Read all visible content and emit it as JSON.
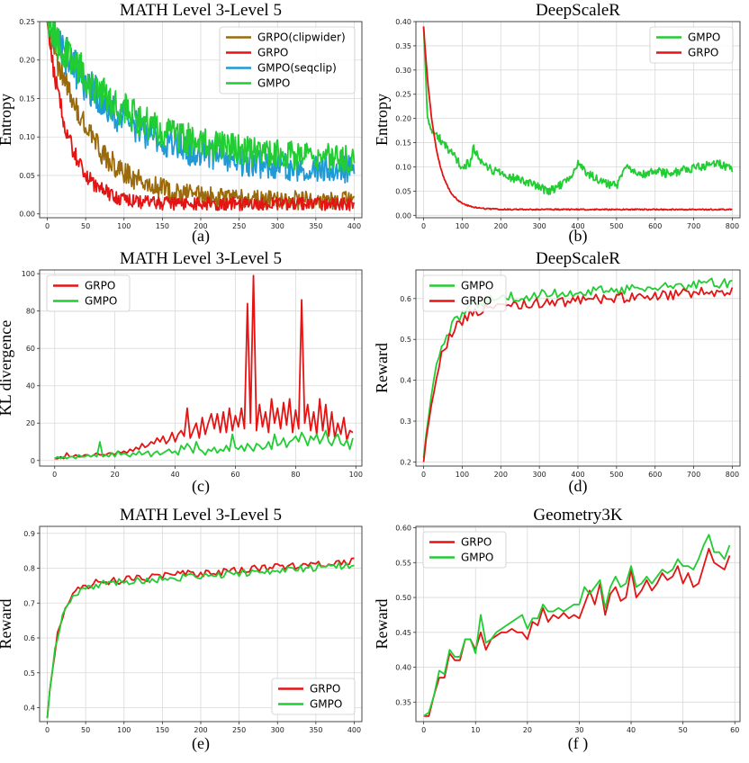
{
  "colors": {
    "grpo_clipwider": "#9b6a0c",
    "grpo": "#e41414",
    "gmpo_seqclip": "#1f9ad6",
    "gmpo": "#22cc33"
  },
  "chart_data": [
    {
      "panel": "a",
      "type": "line",
      "title": "MATH Level 3-Level 5",
      "caption": "(a)",
      "xlabel": "",
      "ylabel": "Entropy",
      "xlim": [
        -10,
        410
      ],
      "ylim": [
        -0.005,
        0.25
      ],
      "xticks": [
        0,
        50,
        100,
        150,
        200,
        250,
        300,
        350,
        400
      ],
      "yticks": [
        0.0,
        0.05,
        0.1,
        0.15,
        0.2,
        0.25
      ],
      "ytick_decimals": 2,
      "grid": true,
      "legend_position": "top-right",
      "series": [
        {
          "name": "GRPO(clipwider)",
          "color_key": "grpo_clipwider",
          "kind": "decay",
          "x0": 0,
          "x1": 400,
          "n": 400,
          "start": 0.25,
          "end": 0.017,
          "tau": 55,
          "noise": 0.02,
          "seed": 11
        },
        {
          "name": "GRPO",
          "color_key": "grpo",
          "kind": "decay",
          "x0": 0,
          "x1": 400,
          "n": 400,
          "start": 0.25,
          "end": 0.013,
          "tau": 28,
          "noise": 0.014,
          "seed": 23
        },
        {
          "name": "GMPO(seqclip)",
          "color_key": "gmpo_seqclip",
          "kind": "decay",
          "x0": 0,
          "x1": 400,
          "n": 400,
          "start": 0.25,
          "end": 0.055,
          "tau": 95,
          "noise": 0.028,
          "seed": 37
        },
        {
          "name": "GMPO",
          "color_key": "gmpo",
          "kind": "decay",
          "x0": 0,
          "x1": 400,
          "n": 400,
          "start": 0.25,
          "end": 0.068,
          "tau": 100,
          "noise": 0.028,
          "seed": 41
        }
      ]
    },
    {
      "panel": "b",
      "type": "line",
      "title": "DeepScaleR",
      "caption": "(b)",
      "xlabel": "",
      "ylabel": "Entropy",
      "xlim": [
        -20,
        820
      ],
      "ylim": [
        -0.005,
        0.4
      ],
      "xticks": [
        0,
        100,
        200,
        300,
        400,
        500,
        600,
        700,
        800
      ],
      "yticks": [
        0.0,
        0.05,
        0.1,
        0.15,
        0.2,
        0.25,
        0.3,
        0.35,
        0.4
      ],
      "ytick_decimals": 2,
      "grid": true,
      "legend_position": "top-right",
      "series": [
        {
          "name": "GMPO",
          "color_key": "gmpo",
          "kind": "points",
          "n": 400,
          "noise": 0.009,
          "seed": 5,
          "x": [
            0,
            10,
            20,
            40,
            60,
            80,
            100,
            120,
            130,
            140,
            160,
            200,
            240,
            280,
            320,
            350,
            380,
            400,
            420,
            460,
            500,
            520,
            560,
            600,
            640,
            680,
            720,
            760,
            800
          ],
          "y": [
            0.39,
            0.2,
            0.175,
            0.16,
            0.14,
            0.12,
            0.1,
            0.11,
            0.14,
            0.12,
            0.1,
            0.085,
            0.075,
            0.065,
            0.05,
            0.06,
            0.08,
            0.11,
            0.09,
            0.07,
            0.06,
            0.1,
            0.085,
            0.09,
            0.085,
            0.095,
            0.1,
            0.11,
            0.095
          ]
        },
        {
          "name": "GRPO",
          "color_key": "grpo",
          "kind": "decay",
          "x0": 0,
          "x1": 800,
          "n": 400,
          "start": 0.39,
          "end": 0.012,
          "tau": 30,
          "noise": 0.002,
          "seed": 7
        }
      ]
    },
    {
      "panel": "c",
      "type": "line",
      "title": "MATH Level 3-Level 5",
      "caption": "(c)",
      "xlabel": "",
      "ylabel": "KL divergence",
      "xlim": [
        -5,
        102
      ],
      "ylim": [
        -3,
        102
      ],
      "xticks": [
        0,
        20,
        40,
        60,
        80,
        100
      ],
      "yticks": [
        0,
        20,
        40,
        60,
        80,
        100
      ],
      "ytick_decimals": 0,
      "grid": true,
      "legend_position": "top-left",
      "series": [
        {
          "name": "GRPO",
          "color_key": "grpo",
          "x": [
            0,
            1,
            2,
            3,
            4,
            5,
            6,
            7,
            8,
            9,
            10,
            11,
            12,
            13,
            14,
            15,
            16,
            17,
            18,
            19,
            20,
            21,
            22,
            23,
            24,
            25,
            26,
            27,
            28,
            29,
            30,
            31,
            32,
            33,
            34,
            35,
            36,
            37,
            38,
            39,
            40,
            41,
            42,
            43,
            44,
            45,
            46,
            47,
            48,
            49,
            50,
            51,
            52,
            53,
            54,
            55,
            56,
            57,
            58,
            59,
            60,
            61,
            62,
            63,
            64,
            65,
            66,
            67,
            68,
            69,
            70,
            71,
            72,
            73,
            74,
            75,
            76,
            77,
            78,
            79,
            80,
            81,
            82,
            83,
            84,
            85,
            86,
            87,
            88,
            89,
            90,
            91,
            92,
            93,
            94,
            95,
            96,
            97,
            98,
            99
          ],
          "y": [
            1,
            1,
            2,
            1,
            4,
            2,
            2,
            3,
            2,
            2,
            3,
            3,
            2,
            3,
            4,
            3,
            3,
            3,
            4,
            4,
            3,
            5,
            4,
            5,
            4,
            6,
            5,
            7,
            6,
            9,
            7,
            8,
            10,
            9,
            12,
            10,
            13,
            9,
            11,
            15,
            10,
            14,
            16,
            13,
            28,
            12,
            16,
            20,
            12,
            23,
            14,
            20,
            25,
            17,
            25,
            15,
            26,
            15,
            28,
            16,
            24,
            18,
            28,
            17,
            84,
            20,
            99,
            16,
            30,
            18,
            26,
            15,
            33,
            20,
            28,
            17,
            31,
            19,
            33,
            15,
            27,
            17,
            86,
            20,
            30,
            16,
            26,
            14,
            33,
            16,
            30,
            13,
            26,
            12,
            20,
            14,
            23,
            11,
            16,
            15
          ]
        },
        {
          "name": "GMPO",
          "color_key": "gmpo",
          "x": [
            0,
            1,
            2,
            3,
            4,
            5,
            6,
            7,
            8,
            9,
            10,
            11,
            12,
            13,
            14,
            15,
            16,
            17,
            18,
            19,
            20,
            21,
            22,
            23,
            24,
            25,
            26,
            27,
            28,
            29,
            30,
            31,
            32,
            33,
            34,
            35,
            36,
            37,
            38,
            39,
            40,
            41,
            42,
            43,
            44,
            45,
            46,
            47,
            48,
            49,
            50,
            51,
            52,
            53,
            54,
            55,
            56,
            57,
            58,
            59,
            60,
            61,
            62,
            63,
            64,
            65,
            66,
            67,
            68,
            69,
            70,
            71,
            72,
            73,
            74,
            75,
            76,
            77,
            78,
            79,
            80,
            81,
            82,
            83,
            84,
            85,
            86,
            87,
            88,
            89,
            90,
            91,
            92,
            93,
            94,
            95,
            96,
            97,
            98,
            99
          ],
          "y": [
            1,
            2,
            1,
            2,
            1,
            2,
            2,
            1,
            3,
            2,
            2,
            3,
            2,
            3,
            2,
            10,
            2,
            3,
            2,
            4,
            2,
            5,
            3,
            4,
            3,
            2,
            4,
            3,
            5,
            3,
            4,
            5,
            2,
            4,
            5,
            3,
            4,
            5,
            6,
            4,
            5,
            3,
            8,
            6,
            9,
            7,
            4,
            10,
            6,
            5,
            3,
            6,
            5,
            7,
            4,
            6,
            5,
            8,
            5,
            14,
            7,
            6,
            8,
            5,
            9,
            7,
            5,
            9,
            8,
            6,
            7,
            10,
            6,
            14,
            8,
            9,
            12,
            7,
            10,
            11,
            13,
            10,
            15,
            12,
            8,
            13,
            11,
            14,
            9,
            12,
            16,
            10,
            8,
            12,
            14,
            9,
            8,
            11,
            6,
            12
          ]
        }
      ]
    },
    {
      "panel": "d",
      "type": "line",
      "title": "DeepScaleR",
      "caption": "(d)",
      "xlabel": "",
      "ylabel": "Reward",
      "xlim": [
        -20,
        820
      ],
      "ylim": [
        0.19,
        0.67
      ],
      "xticks": [
        0,
        100,
        200,
        300,
        400,
        500,
        600,
        700,
        800
      ],
      "yticks": [
        0.2,
        0.3,
        0.4,
        0.5,
        0.6
      ],
      "ytick_decimals": 1,
      "grid": true,
      "legend_position": "top-left",
      "series": [
        {
          "name": "GMPO",
          "color_key": "gmpo",
          "kind": "rise",
          "x0": 0,
          "x1": 800,
          "n": 120,
          "start": 0.21,
          "end": 0.64,
          "tau": 40,
          "drift": 0.05,
          "noise": 0.013,
          "seed": 13
        },
        {
          "name": "GRPO",
          "color_key": "grpo",
          "kind": "rise",
          "x0": 0,
          "x1": 800,
          "n": 120,
          "start": 0.2,
          "end": 0.62,
          "tau": 40,
          "drift": 0.05,
          "noise": 0.013,
          "seed": 17
        }
      ]
    },
    {
      "panel": "e",
      "type": "line",
      "title": "MATH Level 3-Level 5",
      "caption": "(e)",
      "xlabel": "",
      "ylabel": "Reward",
      "xlim": [
        -10,
        410
      ],
      "ylim": [
        0.36,
        0.92
      ],
      "xticks": [
        0,
        50,
        100,
        150,
        200,
        250,
        300,
        350,
        400
      ],
      "yticks": [
        0.4,
        0.5,
        0.6,
        0.7,
        0.8,
        0.9
      ],
      "ytick_decimals": 1,
      "grid": true,
      "legend_position": "bottom-right",
      "series": [
        {
          "name": "GRPO",
          "color_key": "grpo",
          "kind": "rise",
          "x0": 0,
          "x1": 400,
          "n": 120,
          "start": 0.37,
          "end": 0.82,
          "tau": 14,
          "drift": 0.07,
          "noise": 0.012,
          "seed": 29
        },
        {
          "name": "GMPO",
          "color_key": "gmpo",
          "kind": "rise",
          "x0": 0,
          "x1": 400,
          "n": 120,
          "start": 0.37,
          "end": 0.81,
          "tau": 14,
          "drift": 0.065,
          "noise": 0.01,
          "seed": 31
        }
      ]
    },
    {
      "panel": "f",
      "type": "line",
      "title": "Geometry3K",
      "caption": "(f )",
      "xlabel": "",
      "ylabel": "Reward",
      "xlim": [
        -1.5,
        61
      ],
      "ylim": [
        0.322,
        0.602
      ],
      "xticks": [
        0,
        10,
        20,
        30,
        40,
        50,
        60
      ],
      "yticks": [
        0.35,
        0.4,
        0.45,
        0.5,
        0.55,
        0.6
      ],
      "ytick_decimals": 2,
      "grid": true,
      "legend_position": "top-left",
      "series": [
        {
          "name": "GRPO",
          "color_key": "grpo",
          "x": [
            0,
            1,
            2,
            3,
            4,
            5,
            6,
            7,
            8,
            9,
            10,
            11,
            12,
            13,
            14,
            15,
            16,
            17,
            18,
            19,
            20,
            21,
            22,
            23,
            24,
            25,
            26,
            27,
            28,
            29,
            30,
            31,
            32,
            33,
            34,
            35,
            36,
            37,
            38,
            39,
            40,
            41,
            42,
            43,
            44,
            45,
            46,
            47,
            48,
            49,
            50,
            51,
            52,
            53,
            54,
            55,
            56,
            57,
            58,
            59
          ],
          "y": [
            0.33,
            0.33,
            0.36,
            0.385,
            0.385,
            0.42,
            0.41,
            0.41,
            0.44,
            0.44,
            0.425,
            0.45,
            0.425,
            0.44,
            0.445,
            0.45,
            0.45,
            0.455,
            0.45,
            0.45,
            0.44,
            0.465,
            0.46,
            0.485,
            0.465,
            0.475,
            0.47,
            0.478,
            0.47,
            0.475,
            0.47,
            0.49,
            0.51,
            0.49,
            0.52,
            0.475,
            0.505,
            0.515,
            0.495,
            0.5,
            0.54,
            0.5,
            0.51,
            0.525,
            0.51,
            0.52,
            0.535,
            0.525,
            0.53,
            0.545,
            0.52,
            0.535,
            0.515,
            0.52,
            0.545,
            0.57,
            0.55,
            0.545,
            0.54,
            0.56
          ]
        },
        {
          "name": "GMPO",
          "color_key": "gmpo",
          "x": [
            0,
            1,
            2,
            3,
            4,
            5,
            6,
            7,
            8,
            9,
            10,
            11,
            12,
            13,
            14,
            15,
            16,
            17,
            18,
            19,
            20,
            21,
            22,
            23,
            24,
            25,
            26,
            27,
            28,
            29,
            30,
            31,
            32,
            33,
            34,
            35,
            36,
            37,
            38,
            39,
            40,
            41,
            42,
            43,
            44,
            45,
            46,
            47,
            48,
            49,
            50,
            51,
            52,
            53,
            54,
            55,
            56,
            57,
            58,
            59
          ],
          "y": [
            0.33,
            0.335,
            0.36,
            0.395,
            0.39,
            0.425,
            0.415,
            0.415,
            0.44,
            0.44,
            0.42,
            0.475,
            0.435,
            0.44,
            0.45,
            0.455,
            0.46,
            0.465,
            0.47,
            0.475,
            0.455,
            0.47,
            0.47,
            0.49,
            0.48,
            0.48,
            0.485,
            0.48,
            0.485,
            0.49,
            0.49,
            0.515,
            0.505,
            0.515,
            0.525,
            0.485,
            0.515,
            0.53,
            0.515,
            0.52,
            0.545,
            0.515,
            0.52,
            0.53,
            0.52,
            0.53,
            0.54,
            0.535,
            0.54,
            0.555,
            0.545,
            0.545,
            0.54,
            0.555,
            0.575,
            0.59,
            0.565,
            0.565,
            0.555,
            0.575
          ]
        }
      ]
    }
  ]
}
